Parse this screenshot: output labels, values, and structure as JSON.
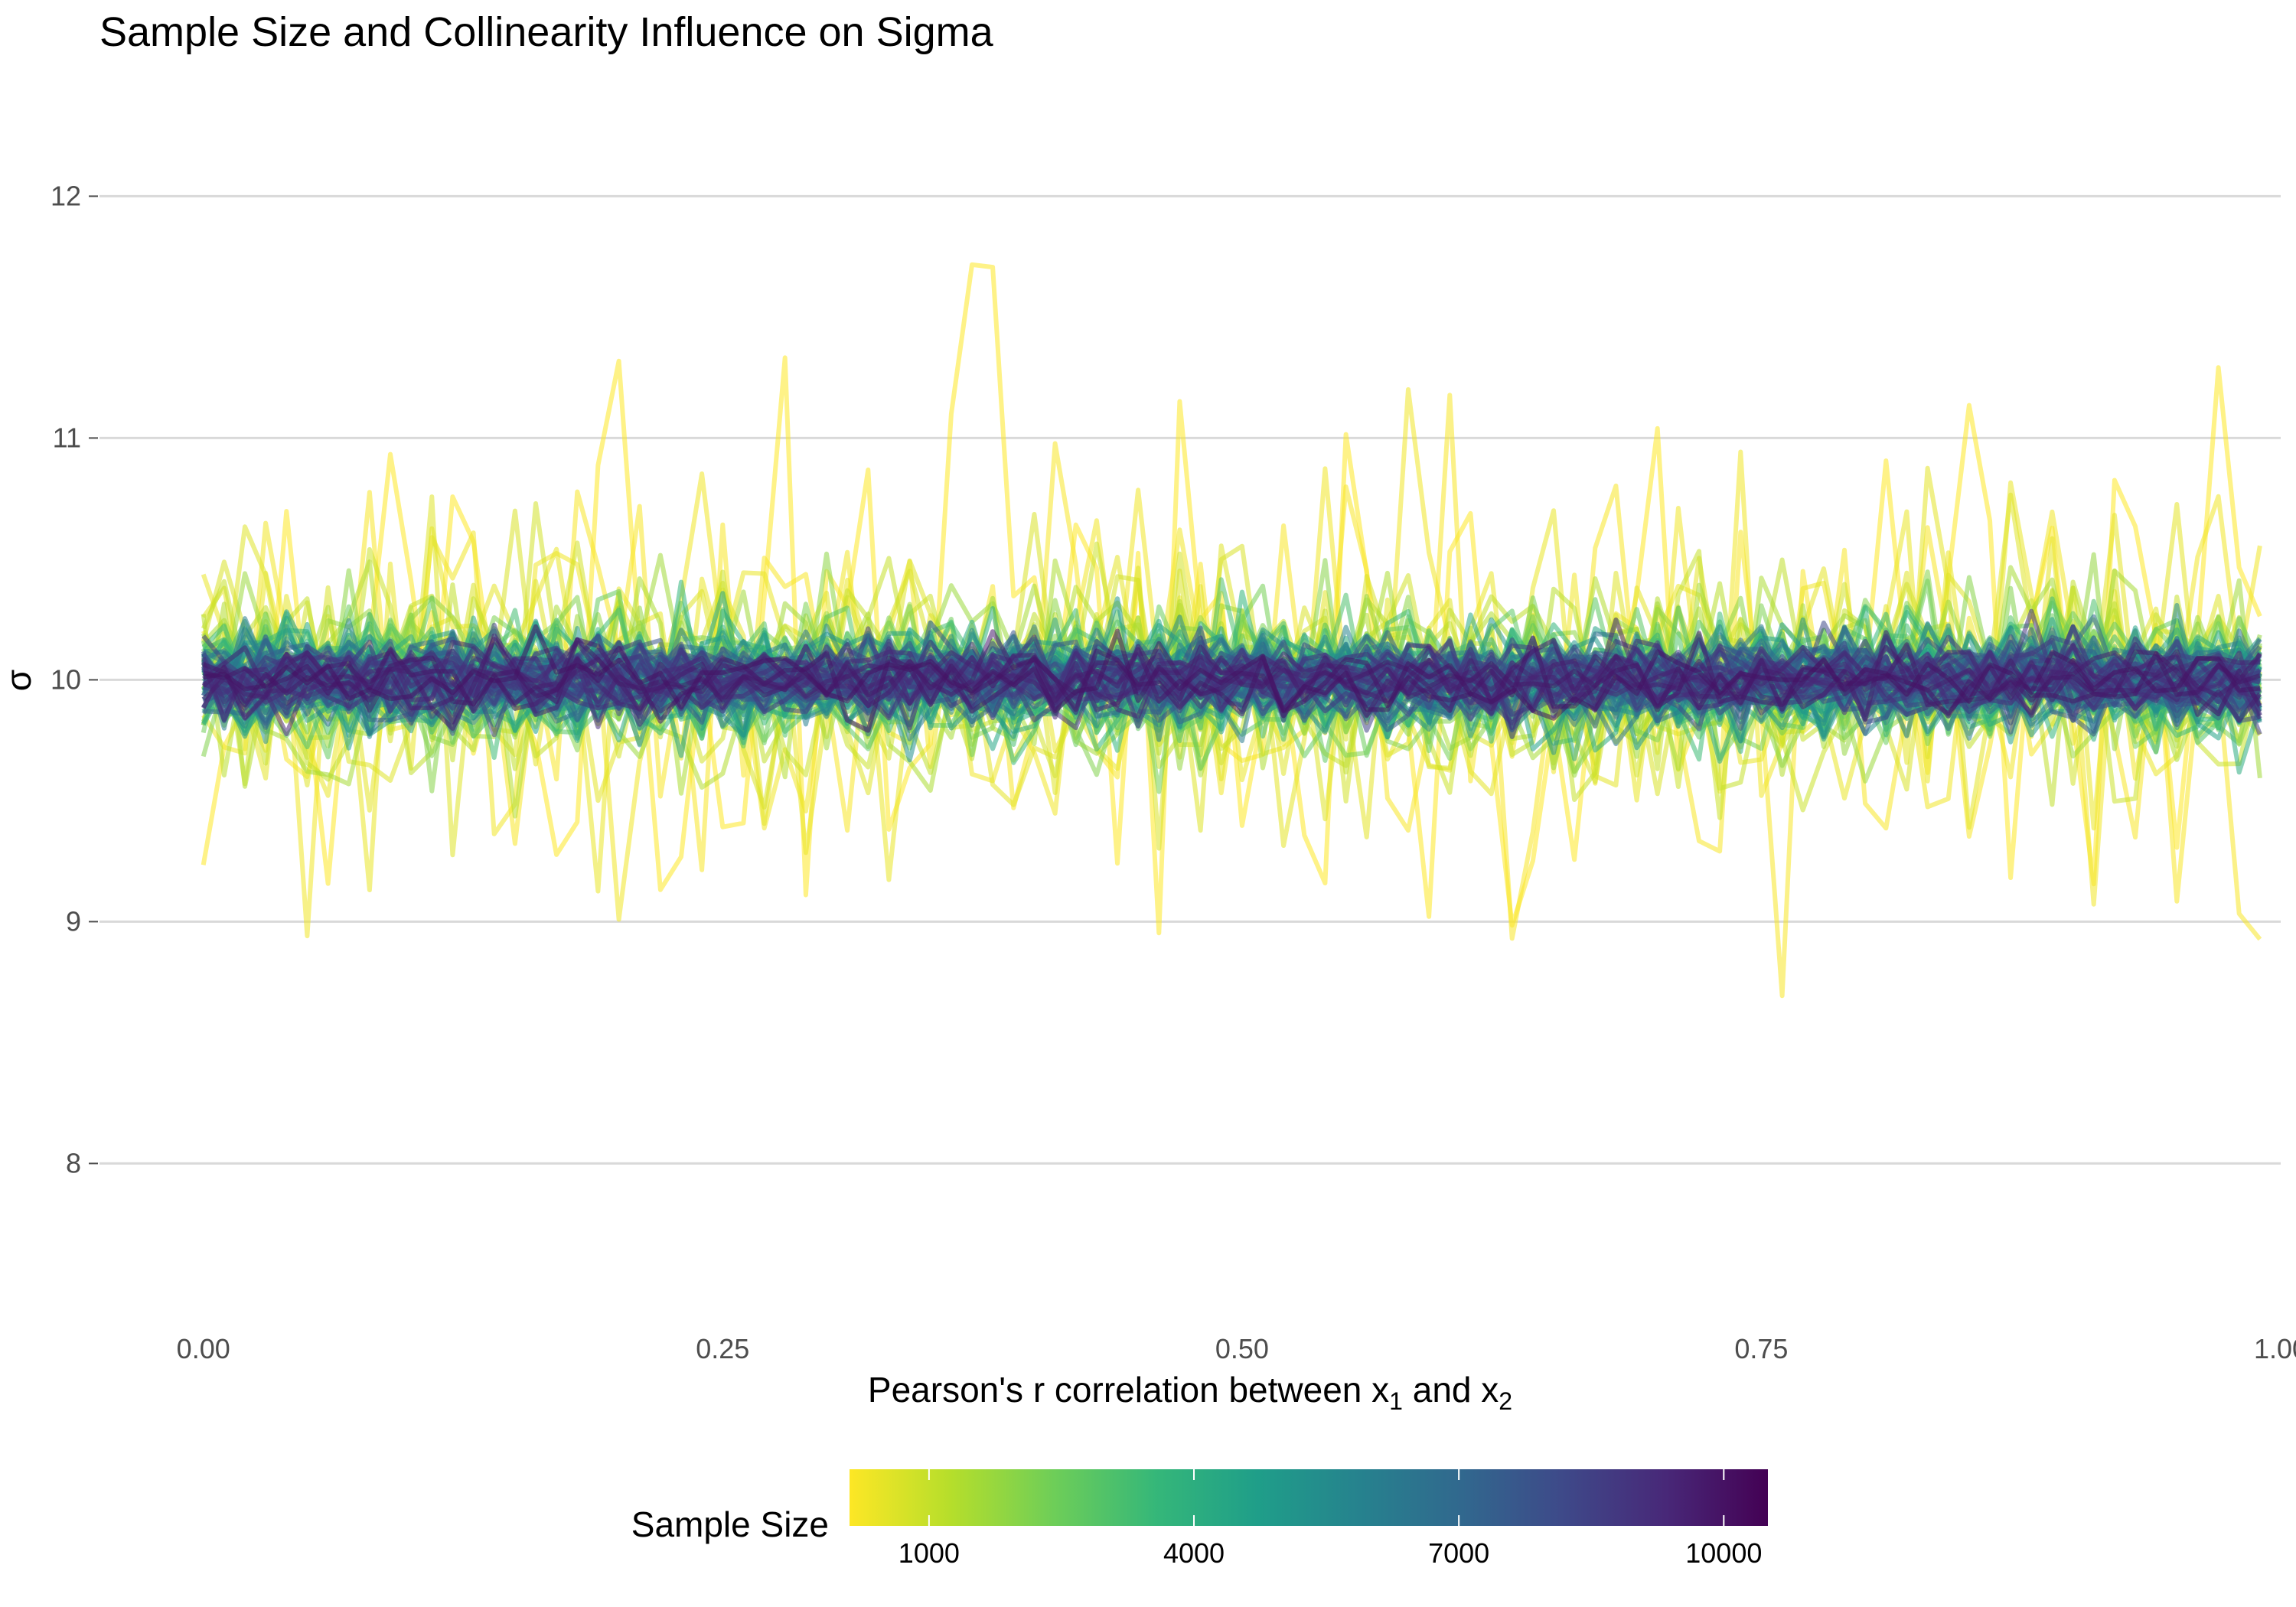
{
  "chart_data": {
    "type": "line",
    "title": "Sample Size and Collinearity Influence on Sigma",
    "xlabel": "Pearson's r correlation between x",
    "xlabel_sub1": "1",
    "xlabel_and": " and x",
    "xlabel_sub2": "2",
    "ylabel": "σ",
    "xlim": [
      -0.05,
      1.0
    ],
    "ylim": [
      7.4,
      12.4
    ],
    "x_ticks": [
      {
        "value": 0.0,
        "label": "0.00"
      },
      {
        "value": 0.25,
        "label": "0.25"
      },
      {
        "value": 0.5,
        "label": "0.50"
      },
      {
        "value": 0.75,
        "label": "0.75"
      },
      {
        "value": 1.0,
        "label": "1.00"
      }
    ],
    "y_ticks": [
      {
        "value": 8,
        "label": "8"
      },
      {
        "value": 9,
        "label": "9"
      },
      {
        "value": 10,
        "label": "10"
      },
      {
        "value": 11,
        "label": "11"
      },
      {
        "value": 12,
        "label": "12"
      }
    ],
    "x_range": [
      0.0,
      0.99
    ],
    "x_step": 0.01,
    "center_value": 10,
    "sample_size_range": [
      100,
      10000
    ],
    "n_series": 100,
    "grid": true,
    "legend": {
      "title": "Sample Size",
      "position": "bottom",
      "type": "colorbar",
      "range": [
        100,
        10500
      ],
      "ticks": [
        {
          "value": 1000,
          "label": "1000"
        },
        {
          "value": 4000,
          "label": "4000"
        },
        {
          "value": 7000,
          "label": "7000"
        },
        {
          "value": 10000,
          "label": "10000"
        }
      ]
    },
    "palette": [
      "#fde725",
      "#b5de2b",
      "#6ece58",
      "#35b779",
      "#1f9e89",
      "#26828e",
      "#31688e",
      "#3e4989",
      "#482878",
      "#440154"
    ],
    "line_opacity": 0.55
  }
}
